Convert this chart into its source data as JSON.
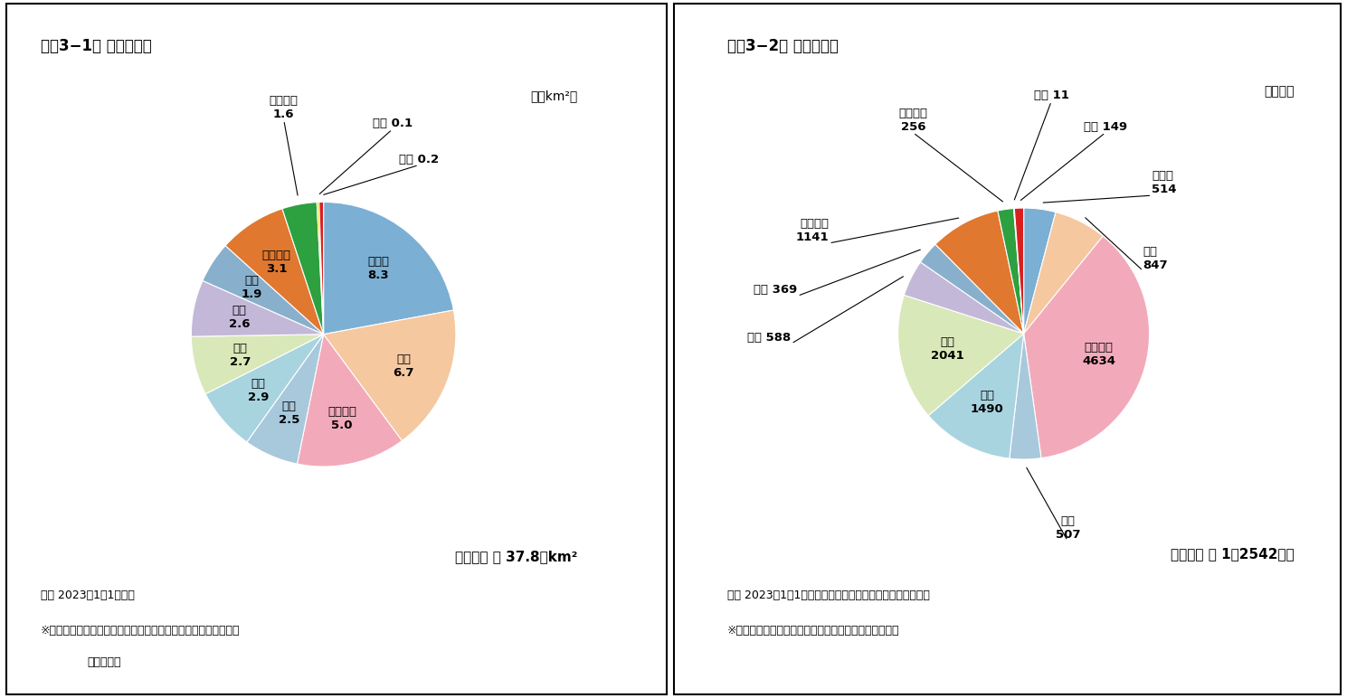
{
  "chart1": {
    "title": "図袅3−1． 面積の内訳",
    "unit": "（万km²）",
    "total_text": "日本全国 ＝ 37.8万km²",
    "footnote1": "＊　 2023年1月1日時点",
    "footnote2": "※「全国都道府県市区町村別面積調」（国土地理院）をもとに、",
    "footnote3": "　筆者作成",
    "labels": [
      "北海道",
      "東北",
      "関東甲信",
      "北陸",
      "東海",
      "近畅",
      "中国",
      "四国",
      "九州北部",
      "九州南部",
      "奔美",
      "沖縄"
    ],
    "values": [
      8.3,
      6.7,
      5.0,
      2.5,
      2.9,
      2.7,
      2.6,
      1.9,
      3.1,
      1.6,
      0.1,
      0.2
    ],
    "colors": [
      "#7BAFD4",
      "#F5C8A0",
      "#F2AABA",
      "#A8C8DC",
      "#A8D4E0",
      "#D8E8B8",
      "#C4B8D8",
      "#88B0CC",
      "#E07830",
      "#2DA040",
      "#F0D000",
      "#D82020"
    ],
    "startangle": 90
  },
  "chart2": {
    "title": "図袅3−2． 人口の内訳",
    "unit": "（万人）",
    "total_text": "日本全国 ＝ 1億2542万人",
    "footnote1": "＊　 2023年1月1日時点（日本人住民と外国人住民の総計）",
    "footnote2": "※「住民基本台帳人口」（総務省）をもとに、筆者作成",
    "labels": [
      "北海道",
      "東北",
      "関東甲信",
      "北陸",
      "東海",
      "近畅",
      "中国",
      "四国",
      "九州北部",
      "九州南部",
      "奔美",
      "沖縄"
    ],
    "values": [
      514,
      847,
      4634,
      507,
      1490,
      2041,
      588,
      369,
      1141,
      256,
      11,
      149
    ],
    "colors": [
      "#7BAFD4",
      "#F5C8A0",
      "#F2AABA",
      "#A8C8DC",
      "#A8D4E0",
      "#D8E8B8",
      "#C4B8D8",
      "#88B0CC",
      "#E07830",
      "#2DA040",
      "#F0D000",
      "#D82020"
    ],
    "startangle": 90
  }
}
